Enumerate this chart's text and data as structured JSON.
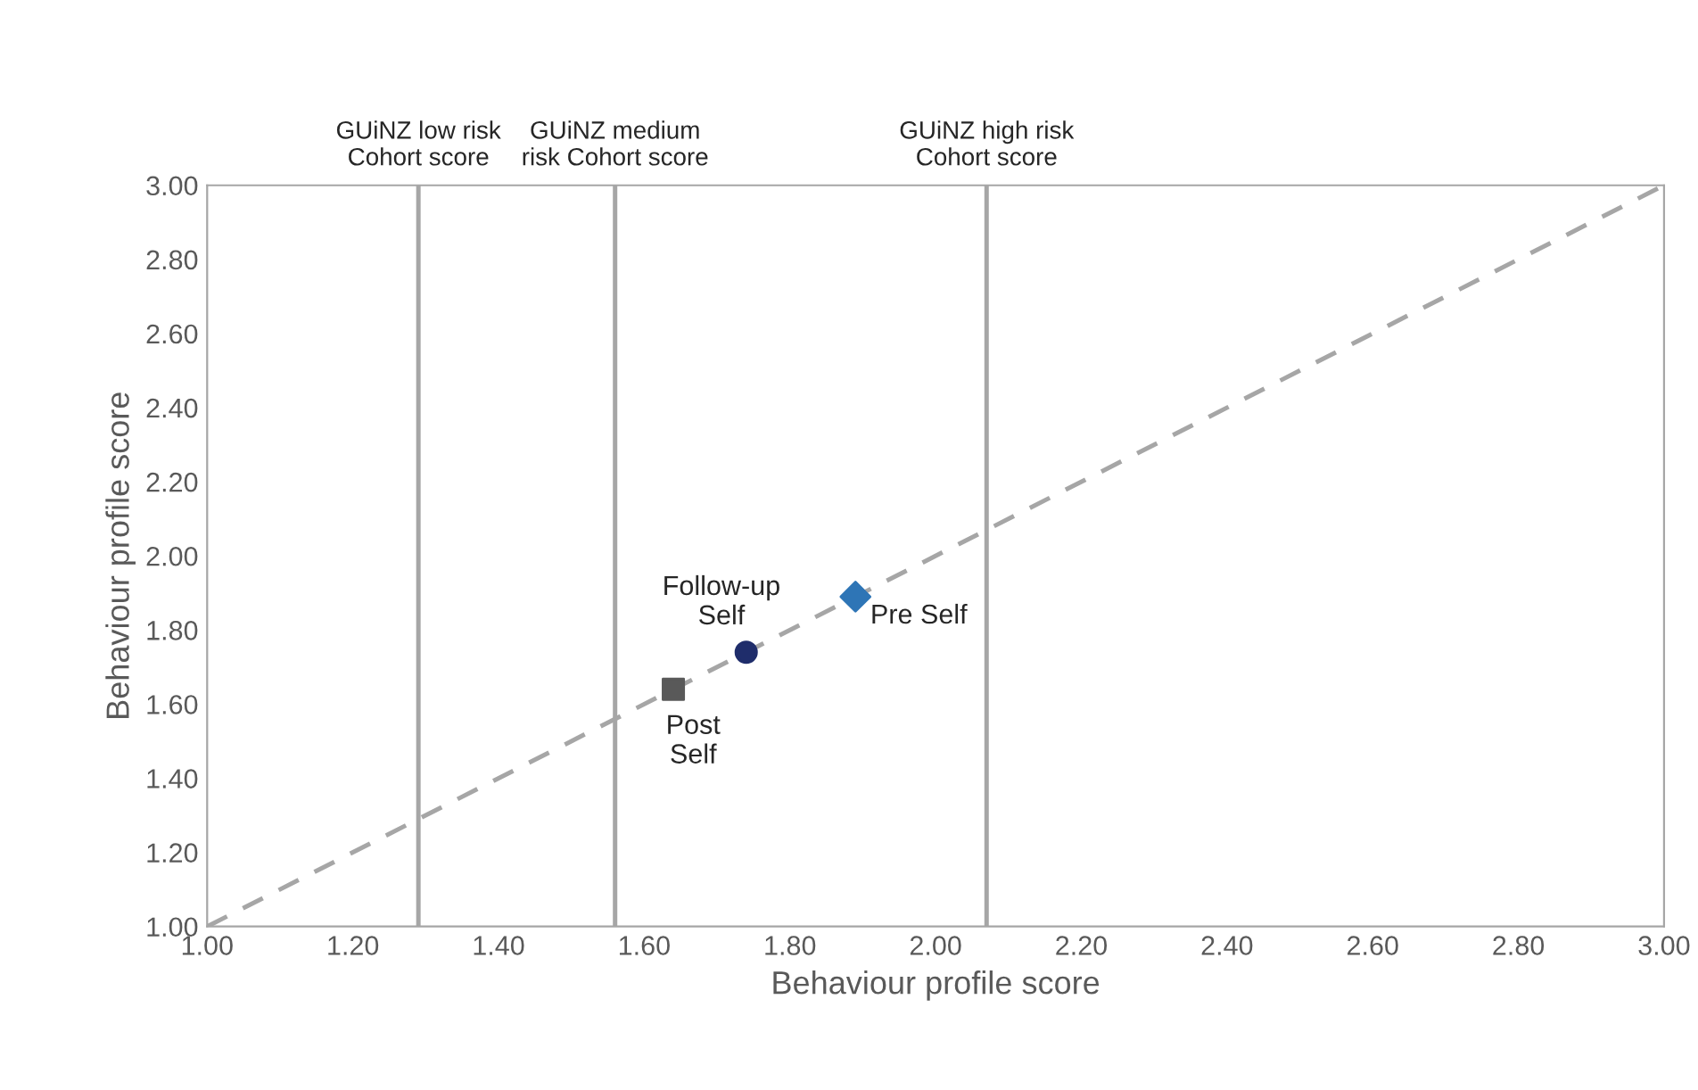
{
  "chart_data": {
    "type": "scatter",
    "xlabel": "Behaviour profile score",
    "ylabel": "Behaviour profile score",
    "xlim": [
      1.0,
      3.0
    ],
    "ylim": [
      1.0,
      3.0
    ],
    "xticks": [
      {
        "value": 1.0,
        "label": "1.00"
      },
      {
        "value": 1.2,
        "label": "1.20"
      },
      {
        "value": 1.4,
        "label": "1.40"
      },
      {
        "value": 1.6,
        "label": "1.60"
      },
      {
        "value": 1.8,
        "label": "1.80"
      },
      {
        "value": 2.0,
        "label": "2.00"
      },
      {
        "value": 2.2,
        "label": "2.20"
      },
      {
        "value": 2.4,
        "label": "2.40"
      },
      {
        "value": 2.6,
        "label": "2.60"
      },
      {
        "value": 2.8,
        "label": "2.80"
      },
      {
        "value": 3.0,
        "label": "3.00"
      }
    ],
    "yticks": [
      {
        "value": 1.0,
        "label": "1.00"
      },
      {
        "value": 1.2,
        "label": "1.20"
      },
      {
        "value": 1.4,
        "label": "1.40"
      },
      {
        "value": 1.6,
        "label": "1.60"
      },
      {
        "value": 1.8,
        "label": "1.80"
      },
      {
        "value": 2.0,
        "label": "2.00"
      },
      {
        "value": 2.2,
        "label": "2.20"
      },
      {
        "value": 2.4,
        "label": "2.40"
      },
      {
        "value": 2.6,
        "label": "2.60"
      },
      {
        "value": 2.8,
        "label": "2.80"
      },
      {
        "value": 3.0,
        "label": "3.00"
      }
    ],
    "grid": false,
    "legend": false,
    "series": [
      {
        "type": "line",
        "x": [
          1.0,
          3.0
        ],
        "values": [
          1.0,
          3.0
        ],
        "color": "#a6a6a6",
        "line_style": "dashed",
        "marker": "none"
      },
      {
        "name": "Pre Self",
        "x": [
          1.89
        ],
        "values": [
          1.89
        ],
        "color": "#2e75b6",
        "marker": "diamond"
      },
      {
        "name": "Follow-up Self",
        "x": [
          1.74
        ],
        "values": [
          1.74
        ],
        "color": "#1f2d6b",
        "marker": "circle"
      },
      {
        "name": "Post Self",
        "x": [
          1.64
        ],
        "values": [
          1.64
        ],
        "color": "#595959",
        "marker": "square"
      }
    ],
    "ref_lines": [
      {
        "axis": "x",
        "value": 1.29,
        "label": "GUiNZ low risk\nCohort score",
        "color": "#a6a6a6"
      },
      {
        "axis": "x",
        "value": 1.56,
        "label": "GUiNZ medium\nrisk Cohort score",
        "color": "#a6a6a6"
      },
      {
        "axis": "x",
        "value": 2.07,
        "label": "GUiNZ high risk\nCohort score",
        "color": "#a6a6a6"
      }
    ]
  }
}
